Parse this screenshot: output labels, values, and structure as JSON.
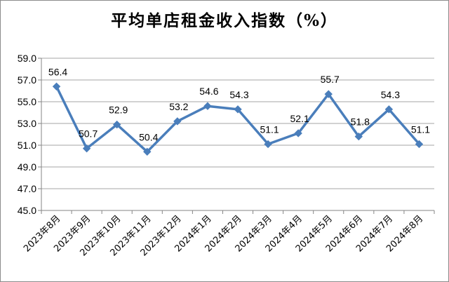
{
  "chart_data": {
    "type": "line",
    "title": "平均单店租金收入指数（%）",
    "xlabel": "",
    "ylabel": "",
    "categories": [
      "2023年8月",
      "2023年9月",
      "2023年10月",
      "2023年11月",
      "2023年12月",
      "2024年1月",
      "2024年2月",
      "2024年3月",
      "2024年4月",
      "2024年5月",
      "2024年6月",
      "2024年7月",
      "2024年8月"
    ],
    "series": [
      {
        "values": [
          56.4,
          50.7,
          52.9,
          50.4,
          53.2,
          54.6,
          54.3,
          51.1,
          52.1,
          55.7,
          51.8,
          54.3,
          51.1
        ]
      }
    ],
    "data_labels": [
      "56.4",
      "50.7",
      "52.9",
      "50.4",
      "53.2",
      "54.6",
      "54.3",
      "51.1",
      "52.1",
      "55.7",
      "51.8",
      "54.3",
      "51.1"
    ],
    "yticks": [
      "45.0",
      "47.0",
      "49.0",
      "51.0",
      "53.0",
      "55.0",
      "57.0",
      "59.0"
    ],
    "ylim": [
      45,
      59
    ],
    "grid": true,
    "legend": "none",
    "line_color": "#4a7ebb",
    "grid_color": "#a6a6a6"
  }
}
